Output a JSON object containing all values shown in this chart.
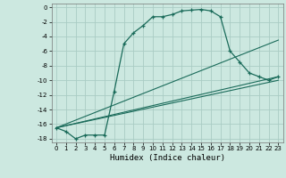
{
  "xlabel": "Humidex (Indice chaleur)",
  "bg_color": "#cce8e0",
  "grid_color": "#aaccC4",
  "line_color": "#1a6b5a",
  "xlim": [
    -0.5,
    23.5
  ],
  "ylim": [
    -18.5,
    0.5
  ],
  "xticks": [
    0,
    1,
    2,
    3,
    4,
    5,
    6,
    7,
    8,
    9,
    10,
    11,
    12,
    13,
    14,
    15,
    16,
    17,
    18,
    19,
    20,
    21,
    22,
    23
  ],
  "yticks": [
    0,
    -2,
    -4,
    -6,
    -8,
    -10,
    -12,
    -14,
    -16,
    -18
  ],
  "curve1_x": [
    0,
    1,
    2,
    3,
    4,
    5,
    6,
    7,
    8,
    9,
    10,
    11,
    12,
    13,
    14,
    15,
    16,
    17,
    18,
    19,
    20,
    21,
    22,
    23
  ],
  "curve1_y": [
    -16.5,
    -17,
    -18,
    -17.5,
    -17.5,
    -17.5,
    -11.5,
    -5,
    -3.5,
    -2.5,
    -1.3,
    -1.3,
    -1,
    -0.5,
    -0.4,
    -0.3,
    -0.5,
    -1.3,
    -6,
    -7.5,
    -9,
    -9.5,
    -10,
    -9.5
  ],
  "line1_x": [
    0,
    23
  ],
  "line1_y": [
    -16.5,
    -9.5
  ],
  "line2_x": [
    0,
    23
  ],
  "line2_y": [
    -16.5,
    -10.0
  ],
  "line3_x": [
    0,
    23
  ],
  "line3_y": [
    -16.5,
    -4.5
  ],
  "xlabel_fontsize": 6.5,
  "tick_fontsize": 5.0
}
